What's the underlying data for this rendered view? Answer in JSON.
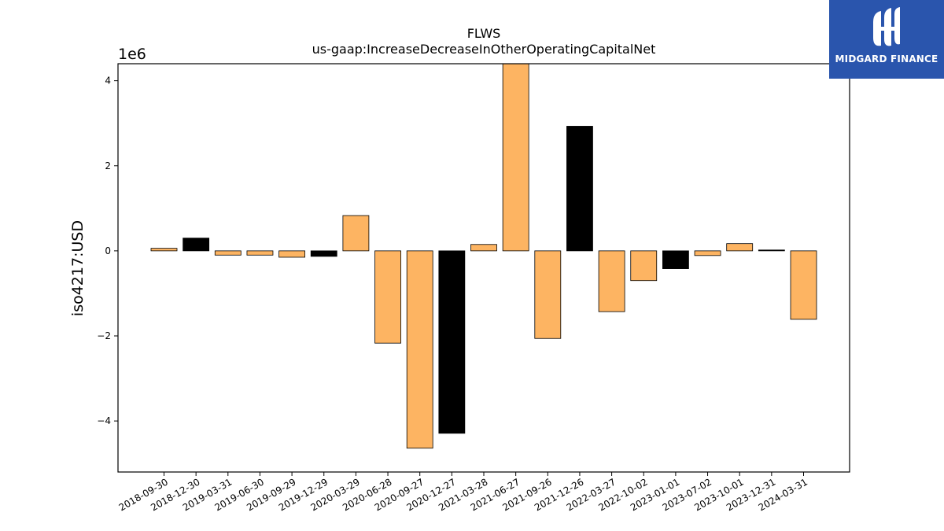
{
  "chart_data": {
    "type": "bar",
    "title": "FLWS",
    "subtitle": "us-gaap:IncreaseDecreaseInOtherOperatingCapitalNet",
    "ylabel": "iso4217:USD",
    "xlabel": "",
    "y_scale_label": "1e6",
    "ylim": [
      -5200000,
      4400000
    ],
    "yticks": [
      -4000000,
      -2000000,
      0,
      2000000,
      4000000
    ],
    "ytick_labels": [
      "−4",
      "−2",
      "0",
      "2",
      "4"
    ],
    "categories": [
      "2018-09-30",
      "2018-12-30",
      "2019-03-31",
      "2019-06-30",
      "2019-09-29",
      "2019-12-29",
      "2020-03-29",
      "2020-06-28",
      "2020-09-27",
      "2020-12-27",
      "2021-03-28",
      "2021-06-27",
      "2021-09-26",
      "2021-12-26",
      "2022-03-27",
      "2022-10-02",
      "2023-01-01",
      "2023-07-02",
      "2023-10-01",
      "2023-12-31",
      "2024-03-31"
    ],
    "values": [
      60000,
      300000,
      -100000,
      -100000,
      -150000,
      -130000,
      830000,
      -2170000,
      -4640000,
      -4290000,
      150000,
      4400000,
      -2060000,
      2930000,
      -1430000,
      -700000,
      -420000,
      -110000,
      170000,
      20000,
      -1610000
    ],
    "bar_colors": [
      "#fdb462",
      "#000000",
      "#fdb462",
      "#fdb462",
      "#fdb462",
      "#000000",
      "#fdb462",
      "#fdb462",
      "#fdb462",
      "#000000",
      "#fdb462",
      "#fdb462",
      "#fdb462",
      "#000000",
      "#fdb462",
      "#fdb462",
      "#000000",
      "#fdb462",
      "#fdb462",
      "#000000",
      "#fdb462"
    ],
    "grid": false,
    "legend": false
  },
  "colors": {
    "primary_bar": "#fdb462",
    "highlight_bar": "#000000",
    "logo_background": "#2a55ad"
  },
  "logo": {
    "text": "MIDGARD FINANCE"
  }
}
